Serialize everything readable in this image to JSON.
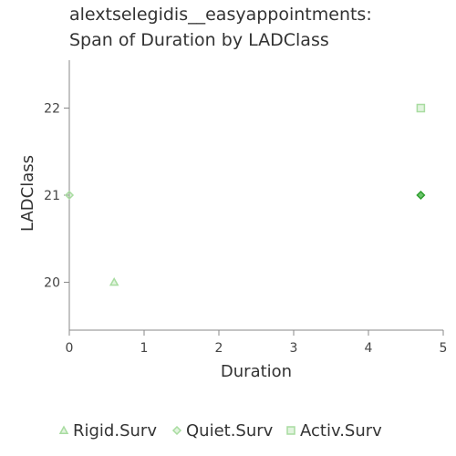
{
  "chart_data": {
    "type": "scatter",
    "title": [
      "alextselegidis__easyappointments:",
      "Span of Duration by LADClass"
    ],
    "xlabel": "Duration",
    "ylabel": "LADClass",
    "xlim": [
      0,
      5
    ],
    "ylim": [
      19.45,
      22.55
    ],
    "xticks": [
      0,
      1,
      2,
      3,
      4,
      5
    ],
    "yticks": [
      20,
      21,
      22
    ],
    "grid": false,
    "legend_position": "bottom",
    "series": [
      {
        "name": "Rigid.Surv",
        "marker": "triangle",
        "color": "#a8dca0",
        "points": [
          {
            "x": 0.6,
            "y": 20
          }
        ]
      },
      {
        "name": "Quiet.Surv",
        "marker": "diamond",
        "color": "#a8dca0",
        "points": [
          {
            "x": 0.0,
            "y": 21
          },
          {
            "x": 4.7,
            "y": 21
          }
        ]
      },
      {
        "name": "Activ.Surv",
        "marker": "square",
        "color": "#a8dca0",
        "points": [
          {
            "x": 4.7,
            "y": 22
          },
          {
            "x": 4.7,
            "y": 21
          }
        ]
      }
    ],
    "highlight_color": "#2e9e2e"
  }
}
